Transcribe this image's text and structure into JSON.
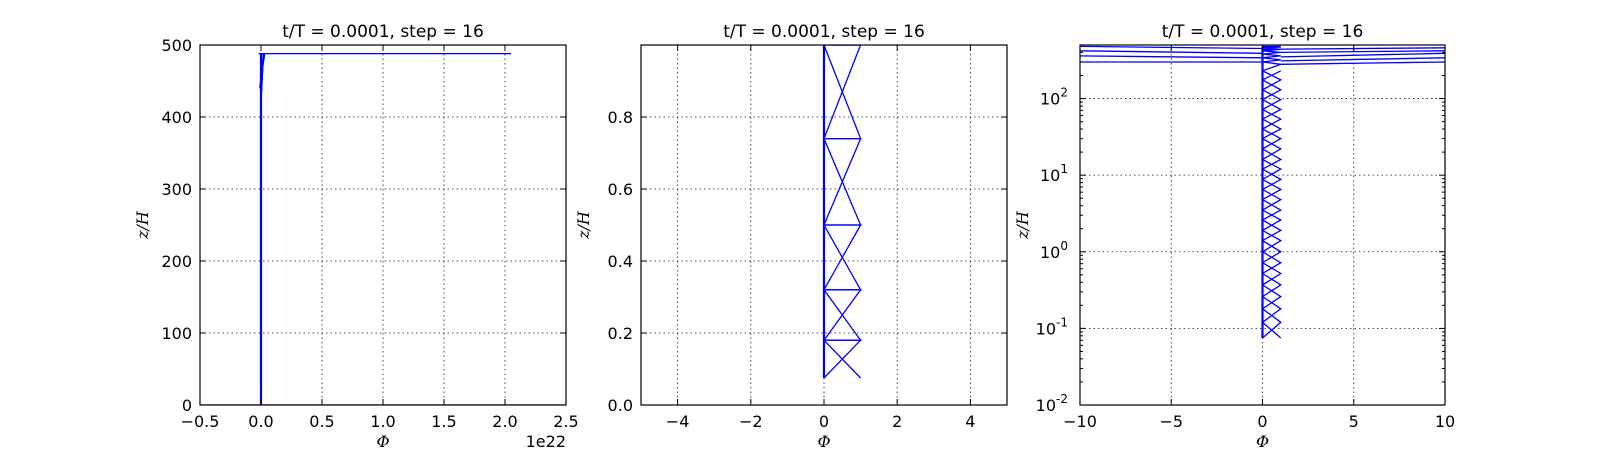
{
  "chart_data": [
    {
      "type": "line",
      "title": "t/T = 0.0001, step = 16",
      "xlabel": "Φ",
      "ylabel": "z/H",
      "xlim": [
        -0.5,
        2.5
      ],
      "ylim": [
        0,
        500
      ],
      "yscale": "linear",
      "x_tick_labels": [
        "−0.5",
        "0.0",
        "0.5",
        "1.0",
        "1.5",
        "2.0",
        "2.5"
      ],
      "y_tick_labels": [
        "0",
        "100",
        "200",
        "300",
        "400",
        "500"
      ],
      "x_offset_label": "1e22",
      "grid": true,
      "line_color": "#0000ff",
      "series": [
        {
          "x": [
            0,
            0
          ],
          "y": [
            0,
            488
          ]
        },
        {
          "x": [
            0,
            0.02,
            2.05
          ],
          "y": [
            420,
            488,
            488
          ]
        },
        {
          "x": [
            -0.02,
            0.03,
            -0.01,
            0.02,
            0
          ],
          "y": [
            488,
            488,
            440,
            488,
            420
          ]
        },
        {
          "x": [
            -0.5,
            2.5
          ],
          "y": [
            0,
            0
          ]
        }
      ]
    },
    {
      "type": "line",
      "title": "t/T = 0.0001, step = 16",
      "xlabel": "Φ",
      "ylabel": "z/H",
      "xlim": [
        -5,
        5
      ],
      "ylim": [
        0,
        1
      ],
      "yscale": "linear",
      "x_tick_labels": [
        "−4",
        "−2",
        "0",
        "2",
        "4"
      ],
      "y_tick_labels": [
        "0.0",
        "0.2",
        "0.4",
        "0.6",
        "0.8"
      ],
      "grid": true,
      "line_color": "#0000ff",
      "series": [
        {
          "x": [
            0,
            0
          ],
          "y": [
            0.075,
            1.0
          ]
        },
        {
          "x": [
            1,
            0,
            1,
            0,
            1,
            0,
            1,
            0,
            1,
            0,
            1,
            0.5
          ],
          "y": [
            0.075,
            0.18,
            0.18,
            0.32,
            0.32,
            0.5,
            0.5,
            0.74,
            0.74,
            1.0,
            1.0,
            1.0
          ]
        },
        {
          "x": [
            0,
            1,
            0,
            1,
            0,
            1,
            0,
            1,
            0,
            1,
            0.25
          ],
          "y": [
            0.075,
            0.18,
            0.18,
            0.32,
            0.32,
            0.5,
            0.5,
            0.74,
            0.74,
            1.0,
            1.0
          ]
        }
      ]
    },
    {
      "type": "line",
      "title": "t/T = 0.0001, step = 16",
      "xlabel": "Φ",
      "ylabel": "z/H",
      "xlim": [
        -10,
        10
      ],
      "ylim": [
        0.01,
        500
      ],
      "yscale": "log",
      "x_tick_labels": [
        "−10",
        "−5",
        "0",
        "5",
        "10"
      ],
      "y_tick_labels": [
        {
          "base": "10",
          "exp": "-2"
        },
        {
          "base": "10",
          "exp": "-1"
        },
        {
          "base": "10",
          "exp": "0"
        },
        {
          "base": "10",
          "exp": "1"
        },
        {
          "base": "10",
          "exp": "2"
        }
      ],
      "grid": true,
      "line_color": "#0000ff",
      "series": [
        {
          "x": [
            0,
            0
          ],
          "y": [
            0.075,
            480
          ]
        },
        {
          "x": [
            1,
            0,
            1,
            0,
            1,
            0,
            1,
            0,
            1,
            0,
            1,
            0,
            1,
            0,
            1,
            0,
            1,
            0,
            1,
            0,
            1,
            0,
            1,
            0,
            1,
            0,
            1,
            0,
            1,
            0,
            1,
            0,
            1,
            0,
            1,
            0,
            1,
            0,
            1,
            0,
            1,
            0,
            1,
            0,
            1,
            0,
            1,
            0,
            1,
            0
          ],
          "y": [
            0.075,
            0.12,
            0.18,
            0.26,
            0.37,
            0.52,
            0.72,
            1.0,
            1.4,
            1.9,
            2.6,
            3.5,
            4.8,
            6.5,
            8.8,
            12,
            16,
            22,
            30,
            40,
            54,
            72,
            97,
            130,
            175,
            230,
            280,
            300,
            320,
            340,
            360,
            380,
            400,
            420,
            440,
            460,
            470,
            475,
            478,
            480,
            480,
            480,
            480,
            480,
            480,
            480,
            480,
            480,
            480,
            480
          ]
        },
        {
          "x": [
            0,
            1,
            0,
            1,
            0,
            1,
            0,
            1,
            0,
            1,
            0,
            1,
            0,
            1,
            0,
            1,
            0,
            1,
            0,
            1,
            0,
            1,
            0,
            1,
            0,
            1
          ],
          "y": [
            0.075,
            0.12,
            0.18,
            0.26,
            0.37,
            0.52,
            0.72,
            1.0,
            1.4,
            1.9,
            2.6,
            3.5,
            4.8,
            6.5,
            8.8,
            12,
            16,
            22,
            30,
            40,
            54,
            72,
            97,
            130,
            175,
            230
          ]
        },
        {
          "x": [
            0,
            -10
          ],
          "y": [
            300,
            300
          ]
        },
        {
          "x": [
            0,
            -10
          ],
          "y": [
            340,
            360
          ]
        },
        {
          "x": [
            0,
            -10
          ],
          "y": [
            390,
            420
          ]
        },
        {
          "x": [
            0,
            -10
          ],
          "y": [
            450,
            480
          ]
        },
        {
          "x": [
            1,
            10
          ],
          "y": [
            280,
            300
          ]
        },
        {
          "x": [
            1,
            10
          ],
          "y": [
            310,
            340
          ]
        },
        {
          "x": [
            1,
            10
          ],
          "y": [
            350,
            390
          ]
        },
        {
          "x": [
            1,
            10
          ],
          "y": [
            400,
            420
          ]
        },
        {
          "x": [
            0,
            10
          ],
          "y": [
            440,
            460
          ]
        }
      ]
    }
  ]
}
